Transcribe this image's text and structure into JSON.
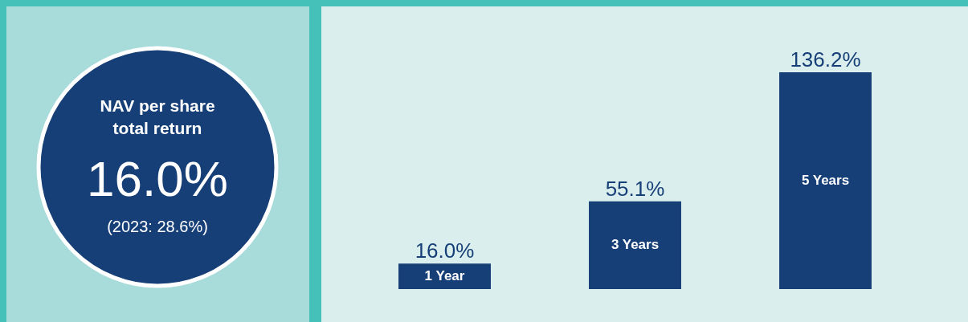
{
  "chart_data": [
    {
      "type": "other",
      "title": "NAV per share total return",
      "annotations": [
        "16.0%",
        "(2023: 28.6%)"
      ]
    },
    {
      "type": "bar",
      "categories": [
        "1 Year",
        "3 Years",
        "5 Years"
      ],
      "values": [
        16.0,
        55.1,
        136.2
      ],
      "color": "#173f77",
      "value_labels": [
        "16.0%",
        "55.1%",
        "136.2%"
      ]
    }
  ]
}
